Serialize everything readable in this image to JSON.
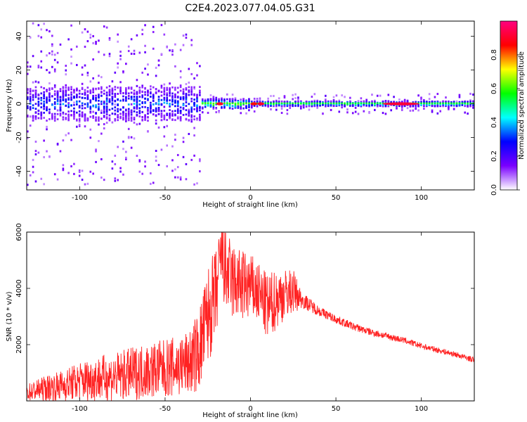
{
  "figure": {
    "title": "C2E4.2023.077.04.05.G31"
  },
  "chart_data": [
    {
      "type": "heatmap",
      "title": "",
      "xlabel": "Height of straight line (km)",
      "ylabel": "Frequency (Hz)",
      "xlim": [
        -131,
        131
      ],
      "ylim": [
        -51,
        49
      ],
      "xticks": [
        -100,
        -50,
        0,
        50,
        100
      ],
      "yticks": [
        -40,
        -20,
        0,
        20,
        40
      ],
      "grid": false,
      "colorbar": {
        "label": "Normalized spectral amplitude",
        "range": [
          0,
          1
        ],
        "ticks": [
          0.0,
          0.2,
          0.4,
          0.6,
          0.8
        ],
        "colors": [
          "#ffffff",
          "#7a00ff",
          "#0000ff",
          "#00ffff",
          "#00ff00",
          "#ffff00",
          "#ff0000",
          "#ff0080"
        ]
      },
      "ridge": {
        "center_hz": 0,
        "regions": [
          {
            "x": [
              -131,
              -30
            ],
            "amplitude": 0.35,
            "scatter_hz": 10
          },
          {
            "x": [
              -30,
              0
            ],
            "amplitude": 0.6,
            "scatter_hz": 3
          },
          {
            "x": [
              0,
              131
            ],
            "amplitude": 0.55,
            "scatter_hz": 1.5
          }
        ],
        "peaks": [
          {
            "x": -18,
            "amplitude": 0.9
          },
          {
            "x": 2,
            "amplitude": 0.85
          },
          {
            "x": 6,
            "amplitude": 0.9
          },
          {
            "x": 88,
            "amplitude": 0.92
          }
        ]
      }
    },
    {
      "type": "line",
      "title": "",
      "xlabel": "Height of straight line (km)",
      "ylabel": "SNR (10 * v/v)",
      "xlim": [
        -131,
        131
      ],
      "ylim": [
        0,
        6000
      ],
      "xticks": [
        -100,
        -50,
        0,
        50,
        100
      ],
      "yticks": [
        2000,
        4000,
        6000
      ],
      "grid": false,
      "color": "#ff2222",
      "x": [
        -131,
        -120,
        -110,
        -100,
        -90,
        -80,
        -70,
        -60,
        -50,
        -40,
        -35,
        -30,
        -25,
        -20,
        -17,
        -15,
        -10,
        -5,
        0,
        5,
        10,
        15,
        20,
        25,
        30,
        40,
        50,
        60,
        70,
        80,
        90,
        100,
        110,
        120,
        131
      ],
      "y": [
        300,
        450,
        550,
        700,
        800,
        850,
        950,
        1100,
        1150,
        1250,
        1400,
        1800,
        3000,
        3800,
        5200,
        4600,
        4200,
        4100,
        4050,
        3800,
        3300,
        3600,
        3800,
        3900,
        3600,
        3200,
        2900,
        2650,
        2450,
        2300,
        2150,
        1950,
        1800,
        1650,
        1450
      ],
      "noise_amplitude": [
        300,
        450,
        550,
        700,
        800,
        850,
        950,
        1000,
        1050,
        1100,
        1200,
        1500,
        1800,
        1700,
        1200,
        1500,
        1400,
        1300,
        1200,
        1100,
        1200,
        1100,
        900,
        800,
        300,
        180,
        150,
        140,
        130,
        120,
        110,
        110,
        100,
        100,
        100
      ]
    }
  ]
}
